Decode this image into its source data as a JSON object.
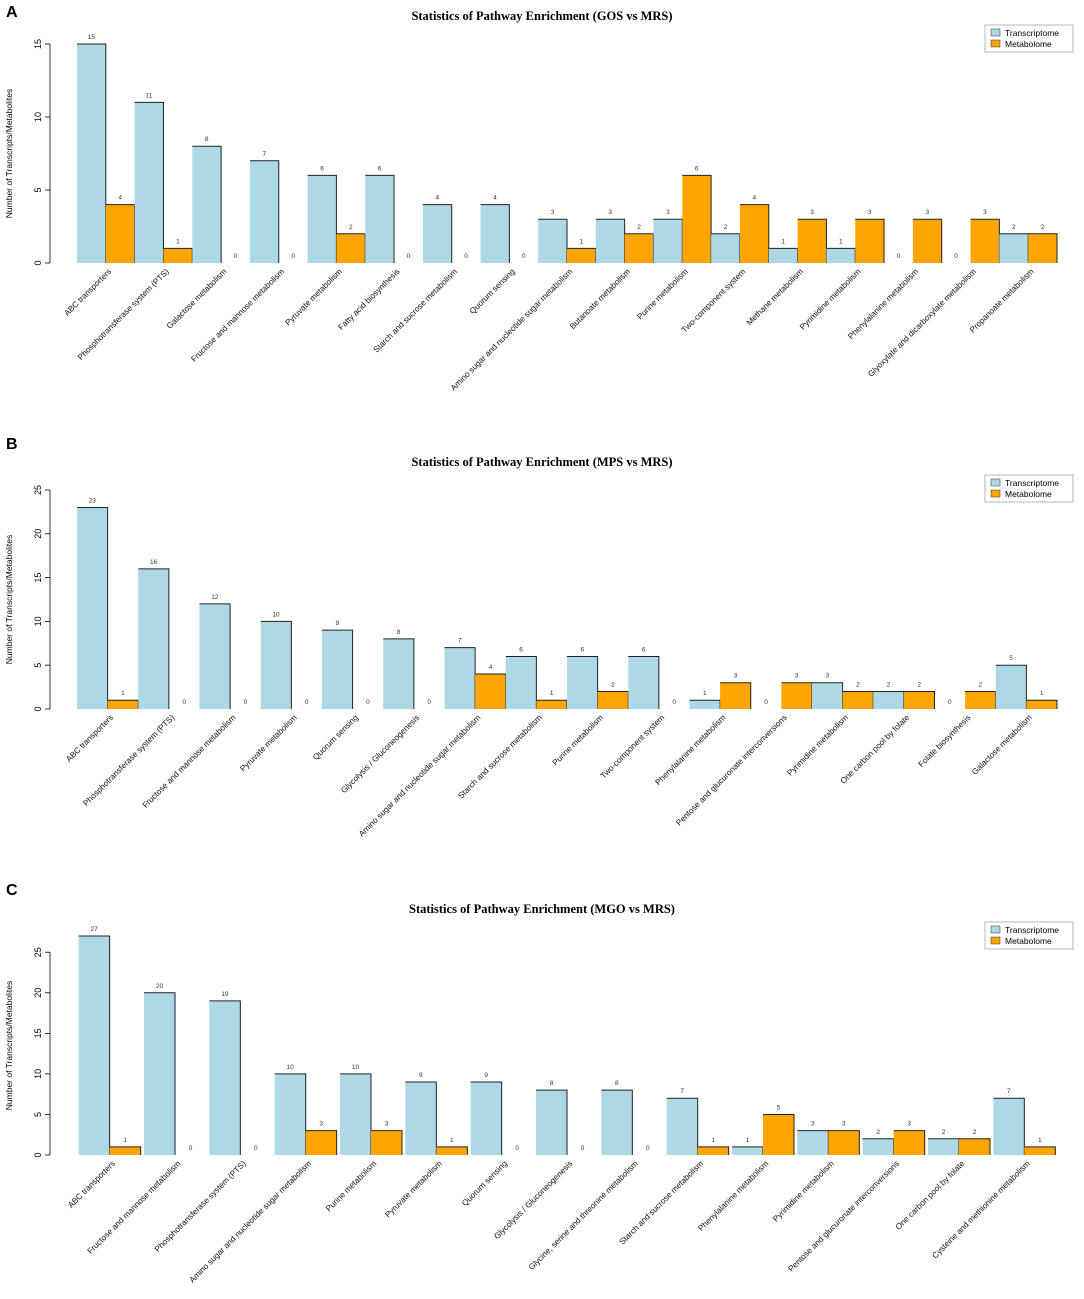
{
  "colors": {
    "transcriptome": "#ADD8E6",
    "metabolome": "#FFA500",
    "stroke": "#222222"
  },
  "chart_data": [
    {
      "type": "bar",
      "panel_label": "A",
      "title": "Statistics of Pathway Enrichment (GOS vs MRS)",
      "ylabel": "Number of Transcripts/Metabolites",
      "xlabel": "",
      "ylim": [
        0,
        15
      ],
      "yticks": [
        0,
        5,
        10,
        15
      ],
      "legend_position": "top-right",
      "categories": [
        "ABC transporters",
        "Phosphotransferase system (PTS)",
        "Galactose metabolism",
        "Fructose and mannose metabolism",
        "Pyruvate metabolism",
        "Fatty acid biosynthesis",
        "Starch and sucrose metabolism",
        "Quorum sensing",
        "Amino sugar and nucleotide sugar metabolism",
        "Butanoate metabolism",
        "Purine metabolism",
        "Two-component system",
        "Methane metabolism",
        "Pyrimidine metabolism",
        "Phenylalanine metabolism",
        "Glyoxylate and dicarboxylate metabolism",
        "Propanoate metabolism"
      ],
      "series": [
        {
          "name": "Transcriptome",
          "values": [
            15,
            11,
            8,
            7,
            6,
            6,
            4,
            4,
            3,
            3,
            3,
            2,
            1,
            1,
            0,
            0,
            2
          ]
        },
        {
          "name": "Metabolome",
          "values": [
            4,
            1,
            0,
            0,
            2,
            0,
            0,
            0,
            1,
            2,
            6,
            4,
            3,
            3,
            3,
            3,
            2
          ]
        }
      ]
    },
    {
      "type": "bar",
      "panel_label": "B",
      "title": "Statistics of Pathway Enrichment (MPS vs MRS)",
      "ylabel": "Number of Transcripts/Metabolites",
      "xlabel": "",
      "ylim": [
        0,
        25
      ],
      "yticks": [
        0,
        5,
        10,
        15,
        20,
        25
      ],
      "legend_position": "top-right",
      "categories": [
        "ABC transporters",
        "Phosphotransferase system (PTS)",
        "Fructose and mannose metabolism",
        "Pyruvate metabolism",
        "Quorum sensing",
        "Glycolysis / Gluconeogenesis",
        "Amino sugar and nucleotide sugar metabolism",
        "Starch and sucrose metabolism",
        "Purine metabolism",
        "Two-component system",
        "Phenylalanine metabolism",
        "Pentose and glucuronate interconversions",
        "Pyrimidine metabolism",
        "One carbon pool by folate",
        "Folate biosynthesis",
        "Galactose metabolism"
      ],
      "series": [
        {
          "name": "Transcriptome",
          "values": [
            23,
            16,
            12,
            10,
            9,
            8,
            7,
            6,
            6,
            6,
            1,
            0,
            3,
            2,
            0,
            5
          ]
        },
        {
          "name": "Metabolome",
          "values": [
            1,
            0,
            0,
            0,
            0,
            0,
            4,
            1,
            2,
            0,
            3,
            3,
            2,
            2,
            2,
            1
          ]
        }
      ]
    },
    {
      "type": "bar",
      "panel_label": "C",
      "title": "Statistics of Pathway Enrichment (MGO vs MRS)",
      "ylabel": "Number of Transcripts/Metabolites",
      "xlabel": "",
      "ylim": [
        0,
        27
      ],
      "yticks": [
        0,
        5,
        10,
        15,
        20,
        25
      ],
      "legend_position": "top-right",
      "categories": [
        "ABC transporters",
        "Fructose and mannose metabolism",
        "Phosphotransferase system (PTS)",
        "Amino sugar and nucleotide sugar metabolism",
        "Purine metabolism",
        "Pyruvate metabolism",
        "Quorum sensing",
        "Glycolysis / Gluconeogenesis",
        "Glycine, serine and threonine metabolism",
        "Starch and sucrose metabolism",
        "Phenylalanine metabolism",
        "Pyrimidine metabolism",
        "Pentose and glucuronate interconversions",
        "One carbon pool by folate",
        "Cysteine and methionine metabolism"
      ],
      "series": [
        {
          "name": "Transcriptome",
          "values": [
            27,
            20,
            19,
            10,
            10,
            9,
            9,
            8,
            8,
            7,
            1,
            3,
            2,
            2,
            7
          ]
        },
        {
          "name": "Metabolome",
          "values": [
            1,
            0,
            0,
            3,
            3,
            1,
            0,
            0,
            0,
            1,
            5,
            3,
            3,
            2,
            1
          ]
        }
      ]
    }
  ]
}
